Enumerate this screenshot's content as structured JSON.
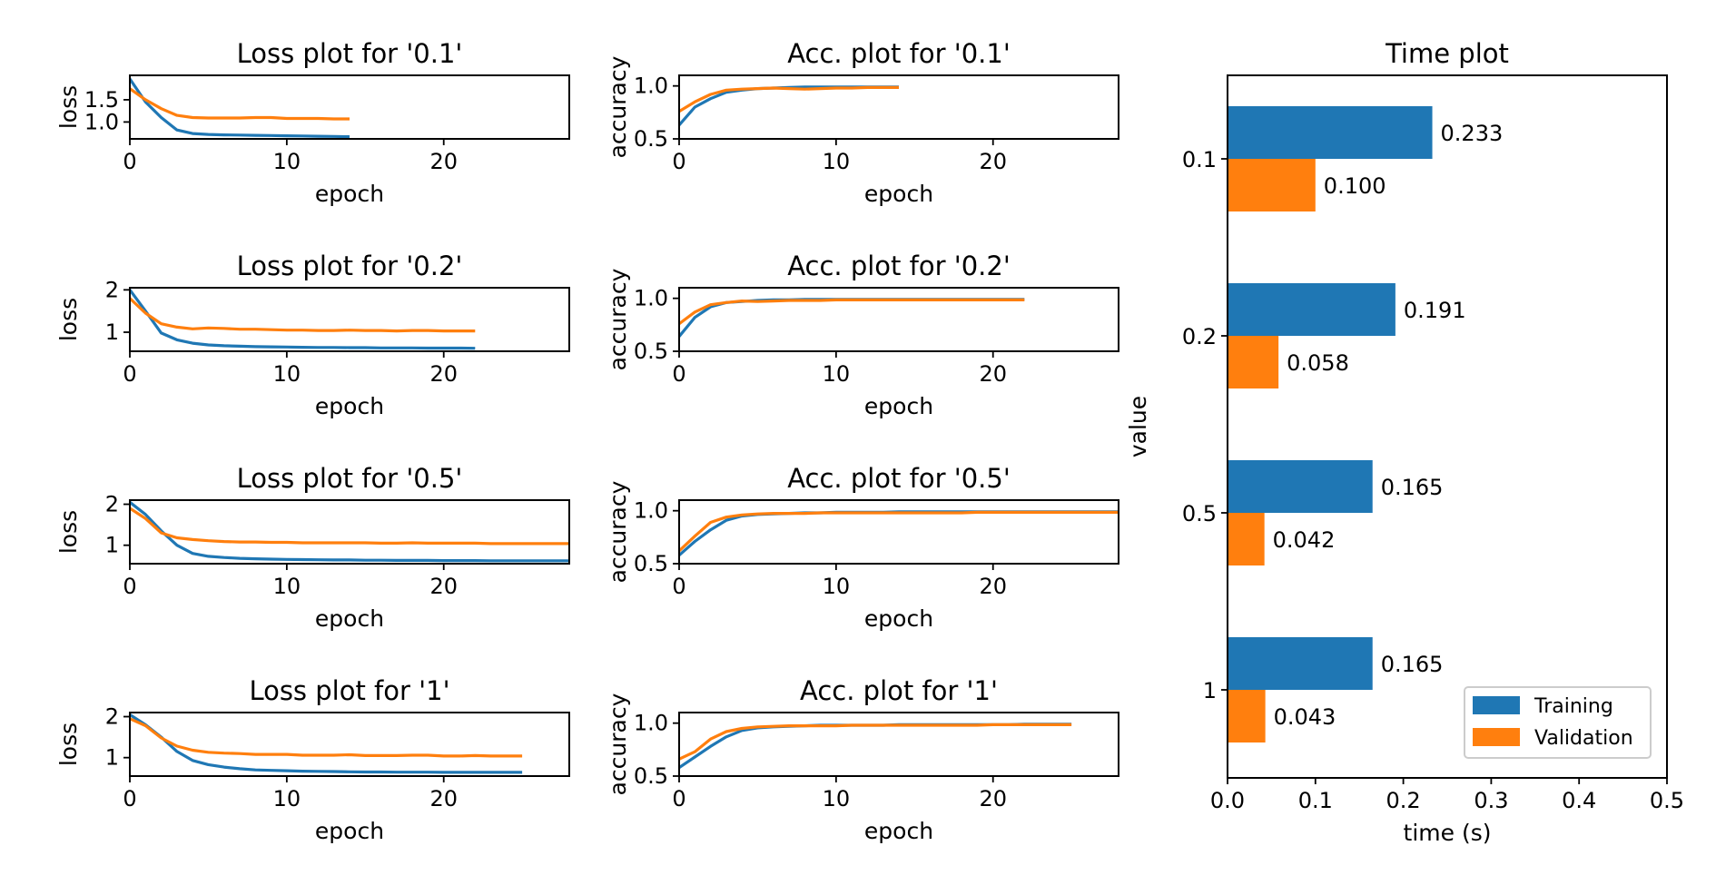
{
  "colors": {
    "training": "#1f77b4",
    "validation": "#ff7f0e"
  },
  "chart_data": [
    {
      "type": "line",
      "title": "Loss plot for '0.1'",
      "xlabel": "epoch",
      "ylabel": "loss",
      "xlim": [
        0,
        28
      ],
      "ylim": [
        0.62,
        2.05
      ],
      "xticks": [
        0,
        10,
        20
      ],
      "yticks": [
        1.0,
        1.5
      ],
      "ytick_labels": [
        "1.0",
        "1.5"
      ],
      "series": [
        {
          "values": [
            1.97,
            1.45,
            1.1,
            0.82,
            0.74,
            0.72,
            0.71,
            0.705,
            0.7,
            0.695,
            0.69,
            0.685,
            0.68,
            0.675,
            0.67
          ],
          "color": "#1f77b4"
        },
        {
          "values": [
            1.75,
            1.5,
            1.3,
            1.15,
            1.1,
            1.09,
            1.09,
            1.09,
            1.1,
            1.1,
            1.08,
            1.08,
            1.08,
            1.07,
            1.07
          ],
          "color": "#ff7f0e"
        }
      ]
    },
    {
      "type": "line",
      "title": "Acc. plot for '0.1'",
      "xlabel": "epoch",
      "ylabel": "accuracy",
      "xlim": [
        0,
        28
      ],
      "ylim": [
        0.5,
        1.1
      ],
      "xticks": [
        0,
        10,
        20
      ],
      "yticks": [
        0.5,
        1.0
      ],
      "ytick_labels": [
        "0.5",
        "1.0"
      ],
      "series": [
        {
          "values": [
            0.63,
            0.8,
            0.88,
            0.94,
            0.96,
            0.975,
            0.98,
            0.985,
            0.99,
            0.99,
            0.99,
            0.99,
            0.99,
            0.99,
            0.99
          ],
          "color": "#1f77b4"
        },
        {
          "values": [
            0.76,
            0.85,
            0.92,
            0.96,
            0.97,
            0.975,
            0.98,
            0.975,
            0.97,
            0.975,
            0.98,
            0.98,
            0.985,
            0.985,
            0.985
          ],
          "color": "#ff7f0e"
        }
      ]
    },
    {
      "type": "line",
      "title": "Loss plot for '0.2'",
      "xlabel": "epoch",
      "ylabel": "loss",
      "xlim": [
        0,
        28
      ],
      "ylim": [
        0.55,
        2.05
      ],
      "xticks": [
        0,
        10,
        20
      ],
      "yticks": [
        1,
        2
      ],
      "ytick_labels": [
        "1",
        "2"
      ],
      "series": [
        {
          "values": [
            2.0,
            1.5,
            0.98,
            0.82,
            0.74,
            0.7,
            0.68,
            0.67,
            0.66,
            0.655,
            0.65,
            0.645,
            0.64,
            0.64,
            0.635,
            0.635,
            0.63,
            0.63,
            0.63,
            0.625,
            0.625,
            0.625,
            0.62
          ],
          "color": "#1f77b4"
        },
        {
          "values": [
            1.8,
            1.45,
            1.2,
            1.12,
            1.08,
            1.1,
            1.09,
            1.07,
            1.07,
            1.06,
            1.05,
            1.05,
            1.04,
            1.04,
            1.05,
            1.04,
            1.04,
            1.03,
            1.04,
            1.04,
            1.03,
            1.03,
            1.03
          ],
          "color": "#ff7f0e"
        }
      ]
    },
    {
      "type": "line",
      "title": "Acc. plot for '0.2'",
      "xlabel": "epoch",
      "ylabel": "accuracy",
      "xlim": [
        0,
        28
      ],
      "ylim": [
        0.5,
        1.1
      ],
      "xticks": [
        0,
        10,
        20
      ],
      "yticks": [
        0.5,
        1.0
      ],
      "ytick_labels": [
        "0.5",
        "1.0"
      ],
      "series": [
        {
          "values": [
            0.64,
            0.82,
            0.92,
            0.96,
            0.97,
            0.98,
            0.985,
            0.985,
            0.99,
            0.99,
            0.99,
            0.99,
            0.99,
            0.99,
            0.99,
            0.99,
            0.99,
            0.99,
            0.99,
            0.99,
            0.99,
            0.99,
            0.99
          ],
          "color": "#1f77b4"
        },
        {
          "values": [
            0.76,
            0.87,
            0.94,
            0.96,
            0.975,
            0.97,
            0.975,
            0.98,
            0.98,
            0.98,
            0.985,
            0.985,
            0.985,
            0.985,
            0.985,
            0.985,
            0.985,
            0.985,
            0.985,
            0.985,
            0.985,
            0.985,
            0.985
          ],
          "color": "#ff7f0e"
        }
      ]
    },
    {
      "type": "line",
      "title": "Loss plot for '0.5'",
      "xlabel": "epoch",
      "ylabel": "loss",
      "xlim": [
        0,
        28
      ],
      "ylim": [
        0.55,
        2.1
      ],
      "xticks": [
        0,
        10,
        20
      ],
      "yticks": [
        1,
        2
      ],
      "ytick_labels": [
        "1",
        "2"
      ],
      "series": [
        {
          "values": [
            2.05,
            1.75,
            1.35,
            1.0,
            0.8,
            0.73,
            0.7,
            0.68,
            0.67,
            0.66,
            0.655,
            0.65,
            0.645,
            0.64,
            0.64,
            0.635,
            0.635,
            0.63,
            0.63,
            0.63,
            0.625,
            0.625,
            0.625,
            0.62,
            0.62,
            0.62,
            0.62,
            0.62,
            0.62
          ],
          "color": "#1f77b4"
        },
        {
          "values": [
            1.9,
            1.65,
            1.3,
            1.18,
            1.14,
            1.11,
            1.09,
            1.08,
            1.08,
            1.07,
            1.07,
            1.06,
            1.06,
            1.06,
            1.06,
            1.06,
            1.05,
            1.05,
            1.06,
            1.05,
            1.05,
            1.05,
            1.05,
            1.04,
            1.04,
            1.04,
            1.04,
            1.04,
            1.04
          ],
          "color": "#ff7f0e"
        }
      ]
    },
    {
      "type": "line",
      "title": "Acc. plot for '0.5'",
      "xlabel": "epoch",
      "ylabel": "accuracy",
      "xlim": [
        0,
        28
      ],
      "ylim": [
        0.5,
        1.1
      ],
      "xticks": [
        0,
        10,
        20
      ],
      "yticks": [
        0.5,
        1.0
      ],
      "ytick_labels": [
        "0.5",
        "1.0"
      ],
      "series": [
        {
          "values": [
            0.58,
            0.71,
            0.82,
            0.91,
            0.95,
            0.965,
            0.97,
            0.975,
            0.98,
            0.98,
            0.985,
            0.985,
            0.985,
            0.985,
            0.99,
            0.99,
            0.99,
            0.99,
            0.99,
            0.99,
            0.99,
            0.99,
            0.99,
            0.99,
            0.99,
            0.99,
            0.99,
            0.99,
            0.99
          ],
          "color": "#1f77b4"
        },
        {
          "values": [
            0.62,
            0.76,
            0.89,
            0.94,
            0.96,
            0.97,
            0.975,
            0.975,
            0.975,
            0.98,
            0.98,
            0.98,
            0.98,
            0.98,
            0.98,
            0.98,
            0.98,
            0.98,
            0.98,
            0.985,
            0.985,
            0.985,
            0.985,
            0.985,
            0.985,
            0.985,
            0.985,
            0.985,
            0.985
          ],
          "color": "#ff7f0e"
        }
      ]
    },
    {
      "type": "line",
      "title": "Loss plot for '1'",
      "xlabel": "epoch",
      "ylabel": "loss",
      "xlim": [
        0,
        28
      ],
      "ylim": [
        0.55,
        2.1
      ],
      "xticks": [
        0,
        10,
        20
      ],
      "yticks": [
        1,
        2
      ],
      "ytick_labels": [
        "1",
        "2"
      ],
      "series": [
        {
          "values": [
            2.05,
            1.8,
            1.5,
            1.15,
            0.93,
            0.83,
            0.77,
            0.73,
            0.7,
            0.69,
            0.68,
            0.67,
            0.665,
            0.66,
            0.655,
            0.65,
            0.65,
            0.645,
            0.645,
            0.645,
            0.64,
            0.64,
            0.64,
            0.64,
            0.64,
            0.64
          ],
          "color": "#1f77b4"
        },
        {
          "values": [
            1.95,
            1.78,
            1.48,
            1.28,
            1.18,
            1.13,
            1.11,
            1.1,
            1.08,
            1.08,
            1.08,
            1.06,
            1.06,
            1.06,
            1.07,
            1.05,
            1.05,
            1.05,
            1.06,
            1.06,
            1.04,
            1.04,
            1.05,
            1.04,
            1.04,
            1.04
          ],
          "color": "#ff7f0e"
        }
      ]
    },
    {
      "type": "line",
      "title": "Acc. plot for '1'",
      "xlabel": "epoch",
      "ylabel": "accuracy",
      "xlim": [
        0,
        28
      ],
      "ylim": [
        0.5,
        1.1
      ],
      "xticks": [
        0,
        10,
        20
      ],
      "yticks": [
        0.5,
        1.0
      ],
      "ytick_labels": [
        "0.5",
        "1.0"
      ],
      "series": [
        {
          "values": [
            0.58,
            0.68,
            0.78,
            0.87,
            0.93,
            0.955,
            0.965,
            0.97,
            0.975,
            0.98,
            0.98,
            0.98,
            0.98,
            0.98,
            0.985,
            0.985,
            0.985,
            0.985,
            0.985,
            0.985,
            0.985,
            0.985,
            0.99,
            0.99,
            0.99,
            0.99
          ],
          "color": "#1f77b4"
        },
        {
          "values": [
            0.66,
            0.73,
            0.85,
            0.92,
            0.95,
            0.965,
            0.97,
            0.975,
            0.975,
            0.975,
            0.975,
            0.98,
            0.98,
            0.98,
            0.98,
            0.98,
            0.98,
            0.98,
            0.98,
            0.98,
            0.985,
            0.985,
            0.985,
            0.985,
            0.985,
            0.985
          ],
          "color": "#ff7f0e"
        }
      ]
    },
    {
      "type": "bar",
      "orientation": "horizontal",
      "title": "Time plot",
      "xlabel": "time (s)",
      "ylabel": "value",
      "xlim": [
        0.0,
        0.5
      ],
      "xticks": [
        0.0,
        0.1,
        0.2,
        0.3,
        0.4,
        0.5
      ],
      "xtick_labels": [
        "0.0",
        "0.1",
        "0.2",
        "0.3",
        "0.4",
        "0.5"
      ],
      "categories": [
        "0.1",
        "0.2",
        "0.5",
        "1"
      ],
      "legend_position": "bottom-right",
      "series": [
        {
          "name": "Training",
          "color": "#1f77b4",
          "values": [
            0.233,
            0.191,
            0.165,
            0.165
          ],
          "labels": [
            "0.233",
            "0.191",
            "0.165",
            "0.165"
          ]
        },
        {
          "name": "Validation",
          "color": "#ff7f0e",
          "values": [
            0.1,
            0.058,
            0.042,
            0.043
          ],
          "labels": [
            "0.100",
            "0.058",
            "0.042",
            "0.043"
          ]
        }
      ]
    }
  ]
}
